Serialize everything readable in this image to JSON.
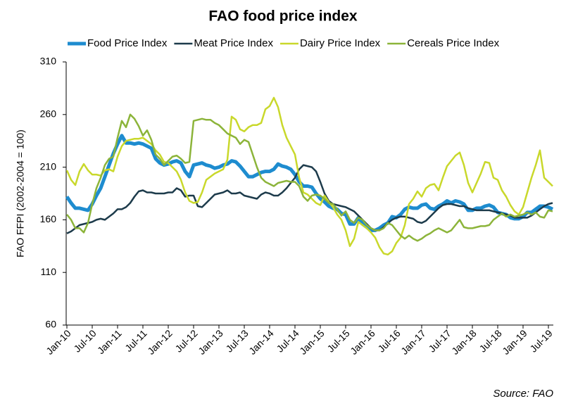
{
  "chart_data": {
    "type": "line",
    "title": "FAO food price index",
    "y_label": "FAO FFPI (2002-2004 = 100)",
    "source": "Source: FAO",
    "categories": [
      "Jan-10",
      null,
      null,
      null,
      null,
      null,
      "Jul-10",
      null,
      null,
      null,
      null,
      null,
      "Jan-11",
      null,
      null,
      null,
      null,
      null,
      "Jul-11",
      null,
      null,
      null,
      null,
      null,
      "Jan-12",
      null,
      null,
      null,
      null,
      null,
      "Jul-12",
      null,
      null,
      null,
      null,
      null,
      "Jan-13",
      null,
      null,
      null,
      null,
      null,
      "Jul-13",
      null,
      null,
      null,
      null,
      null,
      "Jan-14",
      null,
      null,
      null,
      null,
      null,
      "Jul-14",
      null,
      null,
      null,
      null,
      null,
      "Jan-15",
      null,
      null,
      null,
      null,
      null,
      "Jul-15",
      null,
      null,
      null,
      null,
      null,
      "Jan-16",
      null,
      null,
      null,
      null,
      null,
      "Jul-16",
      null,
      null,
      null,
      null,
      null,
      "Jan-17",
      null,
      null,
      null,
      null,
      null,
      "Jul-17",
      null,
      null,
      null,
      null,
      null,
      "Jan-18",
      null,
      null,
      null,
      null,
      null,
      "Jul-18",
      null,
      null,
      null,
      null,
      null,
      "Jan-19",
      null,
      null,
      null,
      null,
      null,
      "Jul-19",
      null
    ],
    "series": [
      {
        "name": "Food Price Index",
        "color": "#1e8ccf",
        "width": 5,
        "values": [
          182,
          176,
          171,
          171,
          170,
          169,
          175,
          183,
          190,
          201,
          212,
          223,
          232,
          240,
          233,
          233,
          232,
          233,
          232,
          230,
          228,
          218,
          214,
          212,
          213,
          215,
          216,
          214,
          206,
          201,
          212,
          213,
          214,
          212,
          211,
          209,
          210,
          212,
          213,
          216,
          215,
          211,
          206,
          201,
          201,
          203,
          205,
          206,
          206,
          208,
          213,
          211,
          210,
          208,
          203,
          196,
          192,
          192,
          191,
          185,
          180,
          177,
          173,
          171,
          170,
          166,
          165,
          156,
          156,
          162,
          156,
          153,
          150,
          150,
          152,
          155,
          157,
          163,
          162,
          165,
          170,
          172,
          171,
          171,
          174,
          175,
          171,
          170,
          173,
          175,
          178,
          176,
          178,
          177,
          175,
          169,
          169,
          171,
          171,
          173,
          174,
          172,
          167,
          166,
          165,
          162,
          161,
          161,
          163,
          167,
          167,
          170,
          173,
          173,
          172,
          170
        ]
      },
      {
        "name": "Meat Price Index",
        "color": "#1d3b4b",
        "width": 2.5,
        "values": [
          147,
          149,
          152,
          155,
          156,
          157,
          158,
          160,
          161,
          160,
          163,
          166,
          170,
          170,
          172,
          176,
          182,
          187,
          188,
          186,
          186,
          185,
          185,
          185,
          186,
          186,
          190,
          188,
          182,
          183,
          183,
          173,
          172,
          176,
          180,
          184,
          185,
          186,
          188,
          185,
          185,
          186,
          183,
          182,
          181,
          180,
          184,
          186,
          185,
          183,
          183,
          186,
          190,
          195,
          200,
          208,
          212,
          211,
          210,
          206,
          196,
          185,
          178,
          175,
          174,
          173,
          172,
          170,
          168,
          164,
          160,
          156,
          152,
          150,
          150,
          153,
          157,
          160,
          162,
          163,
          163,
          162,
          161,
          158,
          157,
          159,
          163,
          167,
          171,
          174,
          175,
          175,
          174,
          173,
          173,
          171,
          170,
          169,
          169,
          169,
          169,
          168,
          167,
          166,
          165,
          164,
          162,
          162,
          162,
          162,
          164,
          167,
          170,
          173,
          175,
          176
        ]
      },
      {
        "name": "Dairy Price Index",
        "color": "#c9d82b",
        "width": 2.5,
        "values": [
          207,
          198,
          193,
          206,
          213,
          207,
          203,
          203,
          202,
          207,
          208,
          206,
          220,
          230,
          235,
          236,
          237,
          237,
          238,
          235,
          232,
          226,
          222,
          215,
          214,
          210,
          206,
          198,
          186,
          178,
          176,
          177,
          186,
          198,
          201,
          204,
          206,
          208,
          217,
          258,
          255,
          246,
          244,
          248,
          250,
          250,
          252,
          265,
          268,
          276,
          267,
          250,
          238,
          230,
          222,
          200,
          186,
          184,
          180,
          176,
          174,
          183,
          177,
          172,
          165,
          160,
          150,
          135,
          142,
          158,
          155,
          152,
          148,
          143,
          134,
          128,
          127,
          130,
          138,
          143,
          155,
          175,
          180,
          187,
          182,
          190,
          193,
          194,
          188,
          200,
          211,
          216,
          221,
          224,
          212,
          195,
          186,
          195,
          204,
          215,
          214,
          200,
          198,
          188,
          182,
          174,
          168,
          165,
          172,
          186,
          200,
          212,
          226,
          200,
          196,
          192
        ]
      },
      {
        "name": "Cereals Price Index",
        "color": "#8cb43a",
        "width": 2.5,
        "values": [
          165,
          160,
          152,
          152,
          148,
          157,
          175,
          190,
          200,
          212,
          218,
          220,
          238,
          254,
          248,
          260,
          256,
          249,
          240,
          245,
          236,
          222,
          218,
          212,
          216,
          220,
          221,
          218,
          214,
          215,
          254,
          255,
          256,
          255,
          255,
          252,
          250,
          246,
          242,
          240,
          238,
          232,
          236,
          234,
          222,
          210,
          200,
          196,
          194,
          192,
          195,
          196,
          197,
          196,
          196,
          192,
          182,
          178,
          183,
          184,
          183,
          180,
          176,
          175,
          170,
          164,
          168,
          160,
          157,
          162,
          160,
          155,
          152,
          150,
          150,
          152,
          157,
          155,
          150,
          145,
          142,
          145,
          142,
          140,
          142,
          145,
          147,
          150,
          152,
          150,
          148,
          150,
          155,
          160,
          153,
          152,
          152,
          153,
          154,
          154,
          155,
          160,
          163,
          166,
          163,
          165,
          163,
          164,
          165,
          167,
          165,
          167,
          163,
          162,
          169,
          168
        ]
      }
    ],
    "ylim": [
      60,
      310
    ],
    "yticks": [
      60,
      110,
      160,
      210,
      260,
      310
    ],
    "grid": false,
    "legend": "top"
  }
}
